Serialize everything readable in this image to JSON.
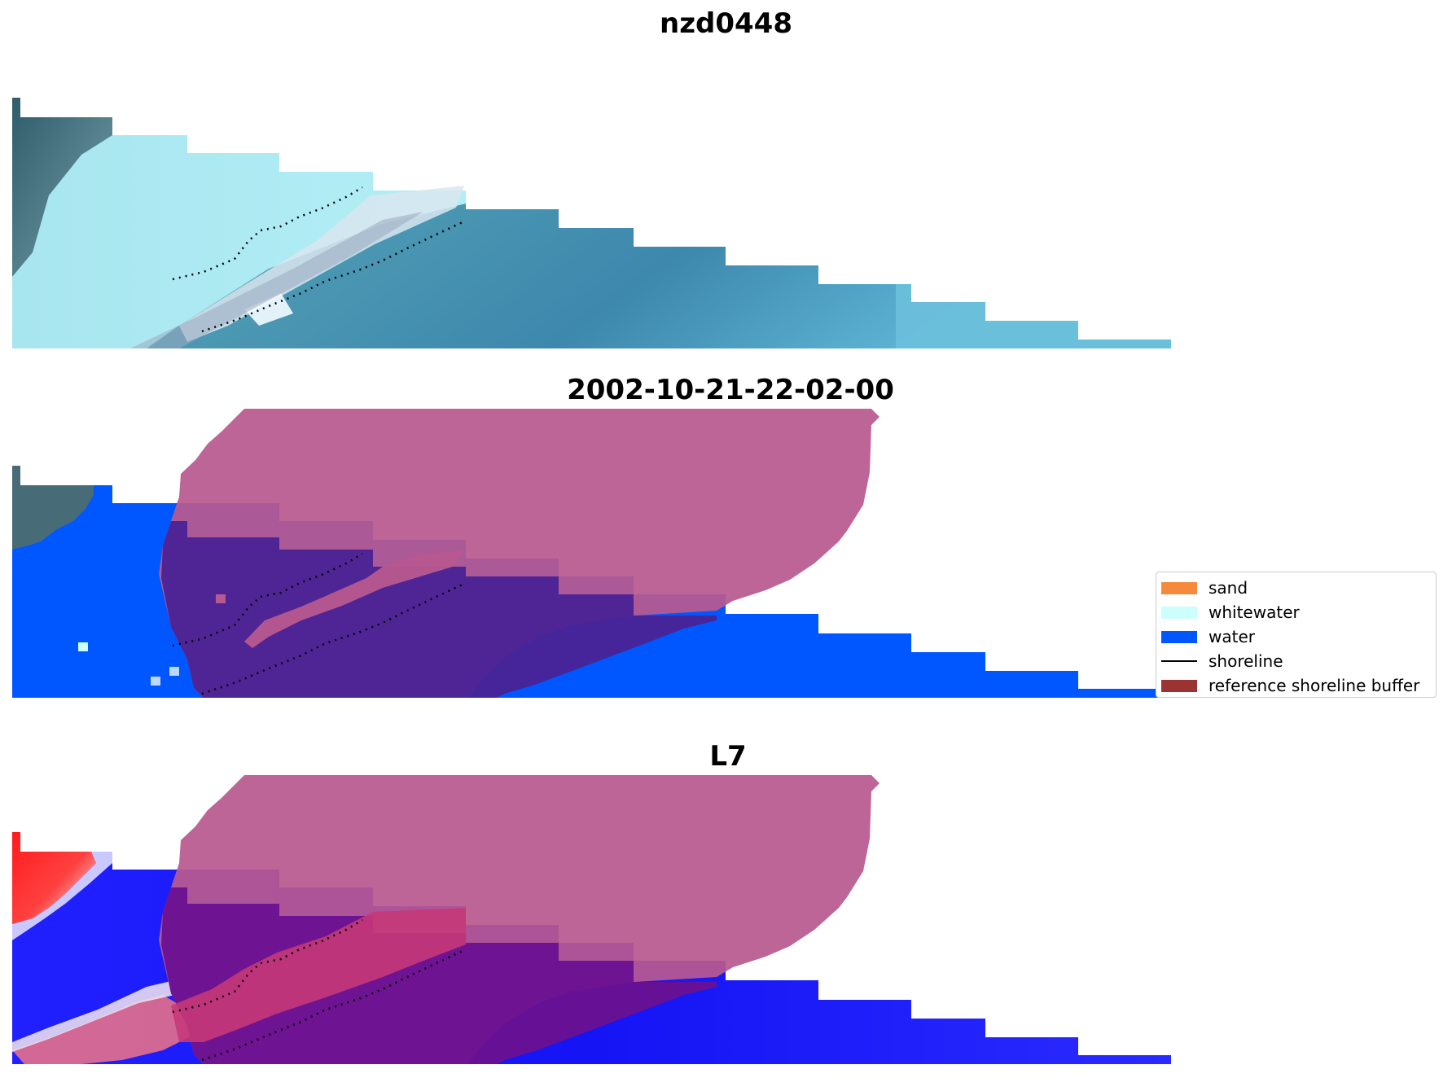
{
  "panels": [
    {
      "title": "nzd0448",
      "image": "rgb-satellite-image"
    },
    {
      "title": "2002-10-21-22-02-00",
      "image": "classified-image"
    },
    {
      "title": "L7",
      "image": "mndwi-image"
    }
  ],
  "legend": {
    "items": [
      {
        "label": "sand",
        "color": "#f68a3c",
        "kind": "patch"
      },
      {
        "label": "whitewater",
        "color": "#ccfffc",
        "kind": "patch"
      },
      {
        "label": "water",
        "color": "#0057ff",
        "kind": "patch"
      },
      {
        "label": "shoreline",
        "color": "#000000",
        "kind": "line"
      },
      {
        "label": "reference shoreline buffer",
        "color": "#9b3333",
        "kind": "patch"
      }
    ]
  },
  "colors": {
    "buffer_overlay": "#b8598f",
    "class_water": "#0057ff",
    "class_water_under_buffer": "#4a2395",
    "mndwi_red": "#ff1a1a",
    "mndwi_blue": "#1a1aff"
  }
}
